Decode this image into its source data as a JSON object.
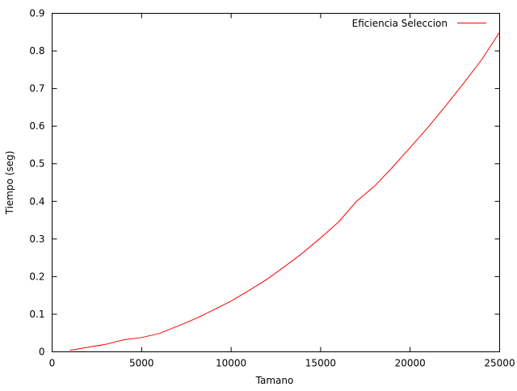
{
  "chart_data": {
    "type": "line",
    "title": "",
    "xlabel": "Tamano",
    "ylabel": "Tiempo (seg)",
    "xlim": [
      0,
      25000
    ],
    "ylim": [
      0,
      0.9
    ],
    "xticks": [
      0,
      5000,
      10000,
      15000,
      20000,
      25000
    ],
    "xtick_labels": [
      "0",
      "5000",
      "10000",
      "15000",
      "20000",
      "25000"
    ],
    "yticks": [
      0,
      0.1,
      0.2,
      0.3,
      0.4,
      0.5,
      0.6,
      0.7,
      0.8,
      0.9
    ],
    "ytick_labels": [
      "0",
      "0.1",
      "0.2",
      "0.3",
      "0.4",
      "0.5",
      "0.6",
      "0.7",
      "0.8",
      "0.9"
    ],
    "grid": false,
    "legend_position": "top-right",
    "series": [
      {
        "name": "Eficiencia Seleccion",
        "color": "#ff0000",
        "x": [
          1000,
          2000,
          3000,
          4000,
          5000,
          6000,
          7000,
          8000,
          9000,
          10000,
          11000,
          12000,
          13000,
          14000,
          15000,
          16000,
          17000,
          18000,
          19000,
          20000,
          21000,
          22000,
          23000,
          24000,
          25000
        ],
        "y": [
          0.004,
          0.012,
          0.02,
          0.032,
          0.038,
          0.049,
          0.068,
          0.088,
          0.111,
          0.135,
          0.163,
          0.193,
          0.227,
          0.263,
          0.303,
          0.345,
          0.4,
          0.44,
          0.49,
          0.543,
          0.597,
          0.655,
          0.715,
          0.777,
          0.85
        ]
      }
    ]
  }
}
